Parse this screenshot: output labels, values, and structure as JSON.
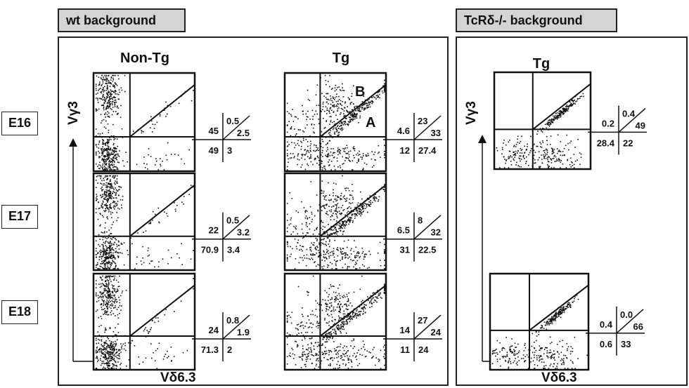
{
  "headers": {
    "left": "wt background",
    "right": "TcRδ-/- background"
  },
  "rows": [
    "E16",
    "E17",
    "E18"
  ],
  "columns": {
    "wt_nontg": "Non-Tg",
    "wt_tg": "Tg",
    "ko_tg": "Tg"
  },
  "axes": {
    "y_left": "Vγ3",
    "x_left": "Vδ6.3",
    "y_right": "Vγ3",
    "x_right": "Vδ6.3"
  },
  "gate_labels": {
    "B": "B",
    "A": "A"
  },
  "chart_data": [
    {
      "type": "scatter",
      "title": "Non-Tg",
      "xlabel": "Vδ6.3",
      "ylabel": "Vγ3",
      "panels": [
        {
          "row": "E16",
          "quadrants": {
            "upper_left": "45",
            "upper_right_above_diag": "0.5",
            "upper_right_below_diag": "2.5",
            "lower_left": "49",
            "lower_right": "3"
          }
        },
        {
          "row": "E17",
          "quadrants": {
            "upper_left": "22",
            "upper_right_above_diag": "0.5",
            "upper_right_below_diag": "3.2",
            "lower_left": "70.9",
            "lower_right": "3.4"
          }
        },
        {
          "row": "E18",
          "quadrants": {
            "upper_left": "24",
            "upper_right_above_diag": "0.8",
            "upper_right_below_diag": "1.9",
            "lower_left": "71.3",
            "lower_right": "2"
          }
        }
      ]
    },
    {
      "type": "scatter",
      "title": "Tg",
      "xlabel": "Vδ6.3",
      "ylabel": "Vγ3",
      "panels": [
        {
          "row": "E16",
          "quadrants": {
            "upper_left": "4.6",
            "upper_right_above_diag": "23",
            "upper_right_below_diag": "33",
            "lower_left": "12",
            "lower_right": "27.4"
          }
        },
        {
          "row": "E17",
          "quadrants": {
            "upper_left": "6.5",
            "upper_right_above_diag": "8",
            "upper_right_below_diag": "32",
            "lower_left": "31",
            "lower_right": "22.5"
          }
        },
        {
          "row": "E18",
          "quadrants": {
            "upper_left": "14",
            "upper_right_above_diag": "27",
            "upper_right_below_diag": "24",
            "lower_left": "11",
            "lower_right": "24"
          }
        }
      ]
    },
    {
      "type": "scatter",
      "title": "Tg",
      "xlabel": "Vδ6.3",
      "ylabel": "Vγ3",
      "panels": [
        {
          "row": "E16",
          "quadrants": {
            "upper_left": "0.2",
            "upper_right_above_diag": "0.4",
            "upper_right_below_diag": "49",
            "lower_left": "28.4",
            "lower_right": "22"
          }
        },
        {
          "row": "E18",
          "quadrants": {
            "upper_left": "0.4",
            "upper_right_above_diag": "0.0",
            "upper_right_below_diag": "66",
            "lower_left": "0.6",
            "lower_right": "33"
          }
        }
      ]
    }
  ]
}
